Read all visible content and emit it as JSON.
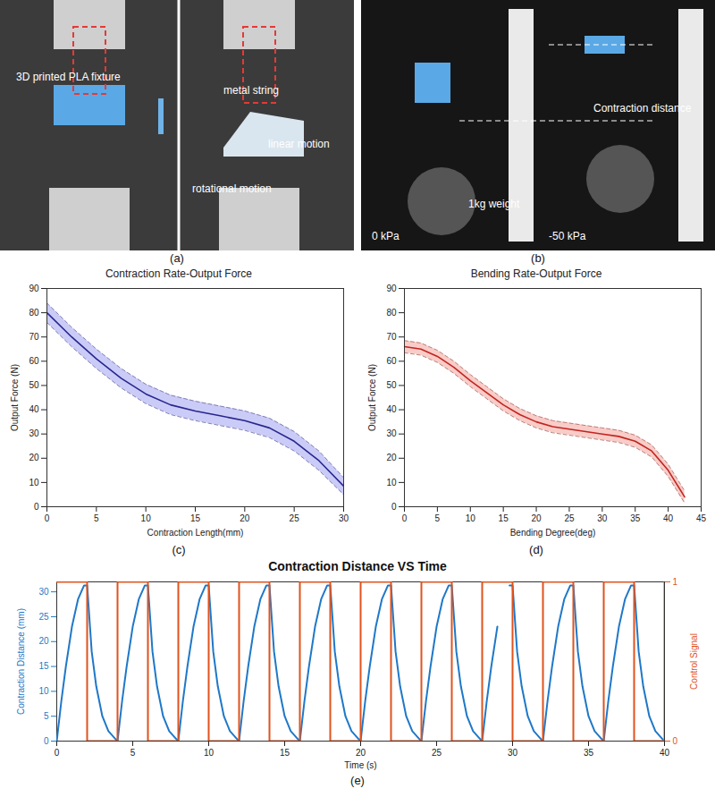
{
  "photos": [
    {
      "label": "(a)",
      "annotations": [
        "3D printed PLA fixture",
        "linear motion",
        "metal string",
        "rotational motion"
      ]
    },
    {
      "label": "(b)",
      "annotations": [
        "Contraction distance",
        "1kg weight",
        "0 kPa",
        "-50 kPa"
      ]
    }
  ],
  "chart_data": [
    {
      "label": "(c)",
      "type": "line",
      "title": "Contraction Rate-Output Force",
      "x_label": "Contraction Length(mm)",
      "y_label": "Output Force (N)",
      "x": [
        0,
        2.5,
        5,
        7.5,
        10,
        12.5,
        15,
        17.5,
        20,
        22.5,
        25,
        27.5,
        30
      ],
      "series": [
        {
          "type": "area",
          "color": "#a9a9f2",
          "line_style": "dashed",
          "upper": [
            84,
            74,
            65,
            57,
            50.5,
            46,
            43.5,
            41.5,
            39.5,
            36.5,
            31,
            23,
            12
          ],
          "lower": [
            76,
            66,
            57,
            49,
            42.5,
            38,
            35.5,
            33.5,
            31.5,
            28.5,
            23,
            15,
            5
          ]
        },
        {
          "type": "line",
          "color": "#26268f",
          "values": [
            80,
            70,
            61,
            53,
            46.5,
            42,
            39.5,
            37.5,
            35.5,
            32.5,
            27,
            19,
            8.5
          ]
        }
      ],
      "xlim": [
        0,
        30
      ],
      "xticks": [
        0,
        5,
        10,
        15,
        20,
        25,
        30
      ],
      "ylim": [
        0,
        90
      ],
      "yticks": [
        0,
        10,
        20,
        30,
        40,
        50,
        60,
        70,
        80,
        90
      ]
    },
    {
      "label": "(d)",
      "type": "line",
      "title": "Bending Rate-Output Force",
      "x_label": "Bending Degree(deg)",
      "y_label": "Output Force (N)",
      "x": [
        0,
        2.5,
        5,
        7.5,
        10,
        12.5,
        15,
        17.5,
        20,
        22.5,
        25,
        27.5,
        30,
        32.5,
        35,
        37.5,
        40,
        42.5
      ],
      "series": [
        {
          "type": "area",
          "color": "#f5aaa4",
          "line_style": "dashed",
          "upper": [
            68.5,
            67.5,
            64.5,
            60,
            54.5,
            49.5,
            44.5,
            40.5,
            37.5,
            35.5,
            34.5,
            33.5,
            32.5,
            31.5,
            29.5,
            25.5,
            17.5,
            6.5
          ],
          "lower": [
            63.5,
            62.5,
            59.5,
            55,
            49.5,
            44.5,
            39.5,
            35.5,
            32.5,
            30.5,
            29.5,
            28.5,
            27.5,
            26.5,
            24.5,
            20.5,
            12.5,
            1.5
          ]
        },
        {
          "type": "line",
          "color": "#c0251f",
          "values": [
            66,
            65,
            62,
            57.5,
            52,
            47,
            42,
            38,
            35,
            33,
            32,
            31,
            30,
            29,
            27,
            23,
            15,
            4
          ]
        }
      ],
      "xlim": [
        0,
        45
      ],
      "xticks": [
        0,
        5,
        10,
        15,
        20,
        25,
        30,
        35,
        40,
        45
      ],
      "ylim": [
        0,
        90
      ],
      "yticks": [
        0,
        10,
        20,
        30,
        40,
        50,
        60,
        70,
        80,
        90
      ]
    },
    {
      "label": "(e)",
      "type": "line",
      "title": "Contraction Distance VS Time",
      "x_label": "Time (s)",
      "y_label": "Contraction Distance (mm)",
      "y2_label": "Control Signal",
      "series": [
        {
          "type": "line",
          "color": "#1f78c8",
          "x": [
            0,
            0.3,
            0.6,
            1,
            1.4,
            1.8,
            2,
            2.3,
            2.6,
            3,
            3.4,
            3.9,
            4,
            4.3,
            4.6,
            5,
            5.4,
            5.8,
            6,
            6.3,
            6.6,
            7,
            7.4,
            7.9,
            8,
            8.3,
            8.6,
            9,
            9.4,
            9.8,
            10,
            10.3,
            10.6,
            11,
            11.4,
            11.9,
            12,
            12.3,
            12.6,
            13,
            13.4,
            13.8,
            14,
            14.3,
            14.6,
            15,
            15.4,
            15.9,
            16,
            16.3,
            16.6,
            17,
            17.4,
            17.8,
            18,
            18.3,
            18.6,
            19,
            19.4,
            19.9,
            20,
            20.3,
            20.6,
            21,
            21.4,
            21.8,
            22,
            22.3,
            22.6,
            23,
            23.4,
            23.9,
            24,
            24.3,
            24.6,
            25,
            25.4,
            25.8,
            26,
            26.3,
            26.6,
            27,
            27.4,
            27.9,
            28,
            28.3,
            28.6,
            29,
            29.4,
            29.8,
            30,
            30.3,
            30.6,
            31,
            31.4,
            31.9,
            32,
            32.3,
            32.6,
            33,
            33.4,
            33.8,
            34,
            34.3,
            34.6,
            35,
            35.4,
            35.9,
            36,
            36.3,
            36.6,
            37,
            37.4,
            37.8,
            38,
            38.3,
            38.6,
            39,
            39.4,
            39.9
          ],
          "values": [
            0,
            8,
            15,
            23,
            28.5,
            31.3,
            31.3,
            18,
            11,
            5,
            2,
            0.3,
            0,
            8,
            15,
            23,
            28.5,
            31.3,
            31.3,
            18,
            11,
            5,
            2,
            0.3,
            0,
            8,
            15,
            23,
            28.5,
            31.3,
            31.3,
            18,
            11,
            5,
            2,
            0.3,
            0,
            8,
            15,
            23,
            28.5,
            31.3,
            31.3,
            18,
            11,
            5,
            2,
            0.3,
            0,
            8,
            15,
            23,
            28.5,
            31.3,
            31.3,
            18,
            11,
            5,
            2,
            0.3,
            0,
            8,
            15,
            23,
            28.5,
            31.3,
            31.3,
            18,
            11,
            5,
            2,
            0.3,
            0,
            8,
            15,
            23,
            28.5,
            31.3,
            31.3,
            18,
            11,
            5,
            2,
            0.3,
            0,
            8,
            15,
            23,
            null,
            31.3,
            31.3,
            18,
            11,
            5,
            2,
            0.3,
            0,
            8,
            15,
            23,
            28.5,
            31.3,
            31.3,
            18,
            11,
            5,
            2,
            0.3,
            0,
            8,
            15,
            23,
            28.5,
            31.3,
            31.3,
            18,
            11,
            5,
            2,
            0.3
          ]
        },
        {
          "type": "step",
          "axis": "y2",
          "color": "#e0531d",
          "x": [
            0,
            2,
            4,
            6,
            8,
            10,
            12,
            14,
            16,
            18,
            20,
            22,
            24,
            26,
            28,
            30,
            32,
            34,
            36,
            38,
            40
          ],
          "values": [
            1,
            0,
            1,
            0,
            1,
            0,
            1,
            0,
            1,
            0,
            1,
            0,
            1,
            0,
            1,
            0,
            1,
            0,
            1,
            0,
            1
          ]
        }
      ],
      "xlim": [
        0,
        40
      ],
      "xticks": [
        0,
        5,
        10,
        15,
        20,
        25,
        30,
        35,
        40
      ],
      "ylim": [
        0,
        32
      ],
      "yticks": [
        0,
        5,
        10,
        15,
        20,
        25,
        30
      ],
      "y2lim": [
        0,
        1
      ],
      "y2ticks": [
        0,
        1
      ]
    }
  ]
}
